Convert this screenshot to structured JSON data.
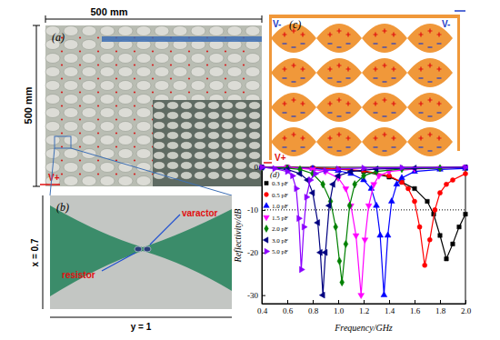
{
  "chart_data": {
    "type": "line",
    "x_label": "Frequency/GHz",
    "y_label": "Reflectivity/dB",
    "xlim": [
      0.4,
      2.0
    ],
    "ylim": [
      -32,
      0
    ],
    "xticks": [
      0.4,
      0.6,
      0.8,
      {
        "value": 1,
        "label": "1.0"
      },
      1.2,
      1.4,
      1.6,
      1.8,
      {
        "value": 2,
        "label": "2.0"
      }
    ],
    "yticks": [
      0,
      -10,
      -20,
      -30
    ],
    "legend": "upper left",
    "reference_lines": [
      {
        "y": -10,
        "line_style": "dotted"
      }
    ],
    "series": [
      {
        "name": "0.3 pF",
        "color": "#000000",
        "marker": "square",
        "x": [
          0.4,
          0.6,
          0.8,
          1.0,
          1.2,
          1.4,
          1.5,
          1.6,
          1.7,
          1.75,
          1.8,
          1.85,
          1.9,
          1.95,
          2.0
        ],
        "values": [
          0,
          0,
          -0.2,
          -0.4,
          -1,
          -2.3,
          -3.5,
          -5,
          -8,
          -11,
          -16,
          -21.5,
          -18,
          -14,
          -11
        ]
      },
      {
        "name": "0.5 pF",
        "color": "#ff0000",
        "marker": "circle",
        "x": [
          0.4,
          0.6,
          0.8,
          1.0,
          1.2,
          1.4,
          1.5,
          1.55,
          1.6,
          1.64,
          1.68,
          1.72,
          1.76,
          1.8,
          1.85,
          1.9,
          2.0
        ],
        "values": [
          0,
          0,
          -0.2,
          -0.4,
          -0.8,
          -2,
          -3.5,
          -5,
          -8,
          -14,
          -23,
          -17,
          -10,
          -6,
          -4,
          -3,
          -1.5
        ]
      },
      {
        "name": "1.0 pF",
        "color": "#0000ff",
        "marker": "triangle-up",
        "x": [
          0.4,
          0.6,
          0.8,
          1.0,
          1.1,
          1.2,
          1.26,
          1.3,
          1.33,
          1.36,
          1.39,
          1.42,
          1.46,
          1.5,
          1.6,
          1.8,
          2.0
        ],
        "values": [
          0,
          0,
          -0.3,
          -0.8,
          -1.5,
          -3,
          -5,
          -9,
          -16,
          -30,
          -16,
          -8,
          -4,
          -2.5,
          -1,
          -0.5,
          -0.3
        ]
      },
      {
        "name": "1.5 pF",
        "color": "#ff00ff",
        "marker": "triangle-down",
        "x": [
          0.4,
          0.6,
          0.8,
          0.9,
          1.0,
          1.06,
          1.1,
          1.14,
          1.18,
          1.21,
          1.24,
          1.28,
          1.32,
          1.4,
          1.6,
          1.8,
          2.0
        ],
        "values": [
          0,
          0,
          -0.5,
          -1,
          -2.5,
          -5,
          -9,
          -16,
          -30,
          -17,
          -9,
          -4,
          -2,
          -1,
          -0.4,
          -0.2,
          0
        ]
      },
      {
        "name": "2.0 pF",
        "color": "#008000",
        "marker": "diamond",
        "x": [
          0.4,
          0.6,
          0.7,
          0.8,
          0.88,
          0.94,
          0.98,
          1.01,
          1.03,
          1.06,
          1.09,
          1.13,
          1.2,
          1.3,
          1.5,
          1.8,
          2.0
        ],
        "values": [
          0,
          -0.2,
          -0.5,
          -1.5,
          -4,
          -8,
          -14,
          -22,
          -27,
          -18,
          -9,
          -4,
          -2,
          -1,
          -0.4,
          -0.2,
          0
        ]
      },
      {
        "name": "3.0 pF",
        "color": "#000080",
        "marker": "triangle-left",
        "x": [
          0.4,
          0.6,
          0.7,
          0.76,
          0.8,
          0.84,
          0.86,
          0.88,
          0.9,
          0.93,
          0.96,
          1.0,
          1.1,
          1.3,
          1.6,
          2.0
        ],
        "values": [
          0,
          -0.5,
          -1.5,
          -3,
          -6,
          -13,
          -20,
          -30,
          -20,
          -9,
          -4,
          -2,
          -1,
          -0.4,
          -0.2,
          0
        ]
      },
      {
        "name": "5.0 pF",
        "color": "#8b00ff",
        "marker": "triangle-right",
        "x": [
          0.4,
          0.5,
          0.6,
          0.64,
          0.67,
          0.69,
          0.71,
          0.73,
          0.75,
          0.78,
          0.82,
          0.9,
          1.0,
          1.2,
          1.5,
          2.0
        ],
        "values": [
          0,
          -0.3,
          -1,
          -2,
          -5,
          -12,
          -24,
          -14,
          -7,
          -3,
          -1.5,
          -0.8,
          -0.4,
          -0.2,
          -0.1,
          0
        ]
      }
    ]
  },
  "figure": {
    "panel_labels": [
      "(a)",
      "(b)",
      "(c)",
      "(d)"
    ],
    "sample": {
      "width": "500 mm",
      "height": "500 mm",
      "positive": "V+"
    },
    "unit_cell": {
      "height": "x = 0.7",
      "width": "y = 1",
      "varactor": "varactor",
      "resistor": "resistor"
    },
    "bias_network": {
      "negative_left": "V-",
      "negative_right": "V-",
      "positive": "V+"
    }
  }
}
